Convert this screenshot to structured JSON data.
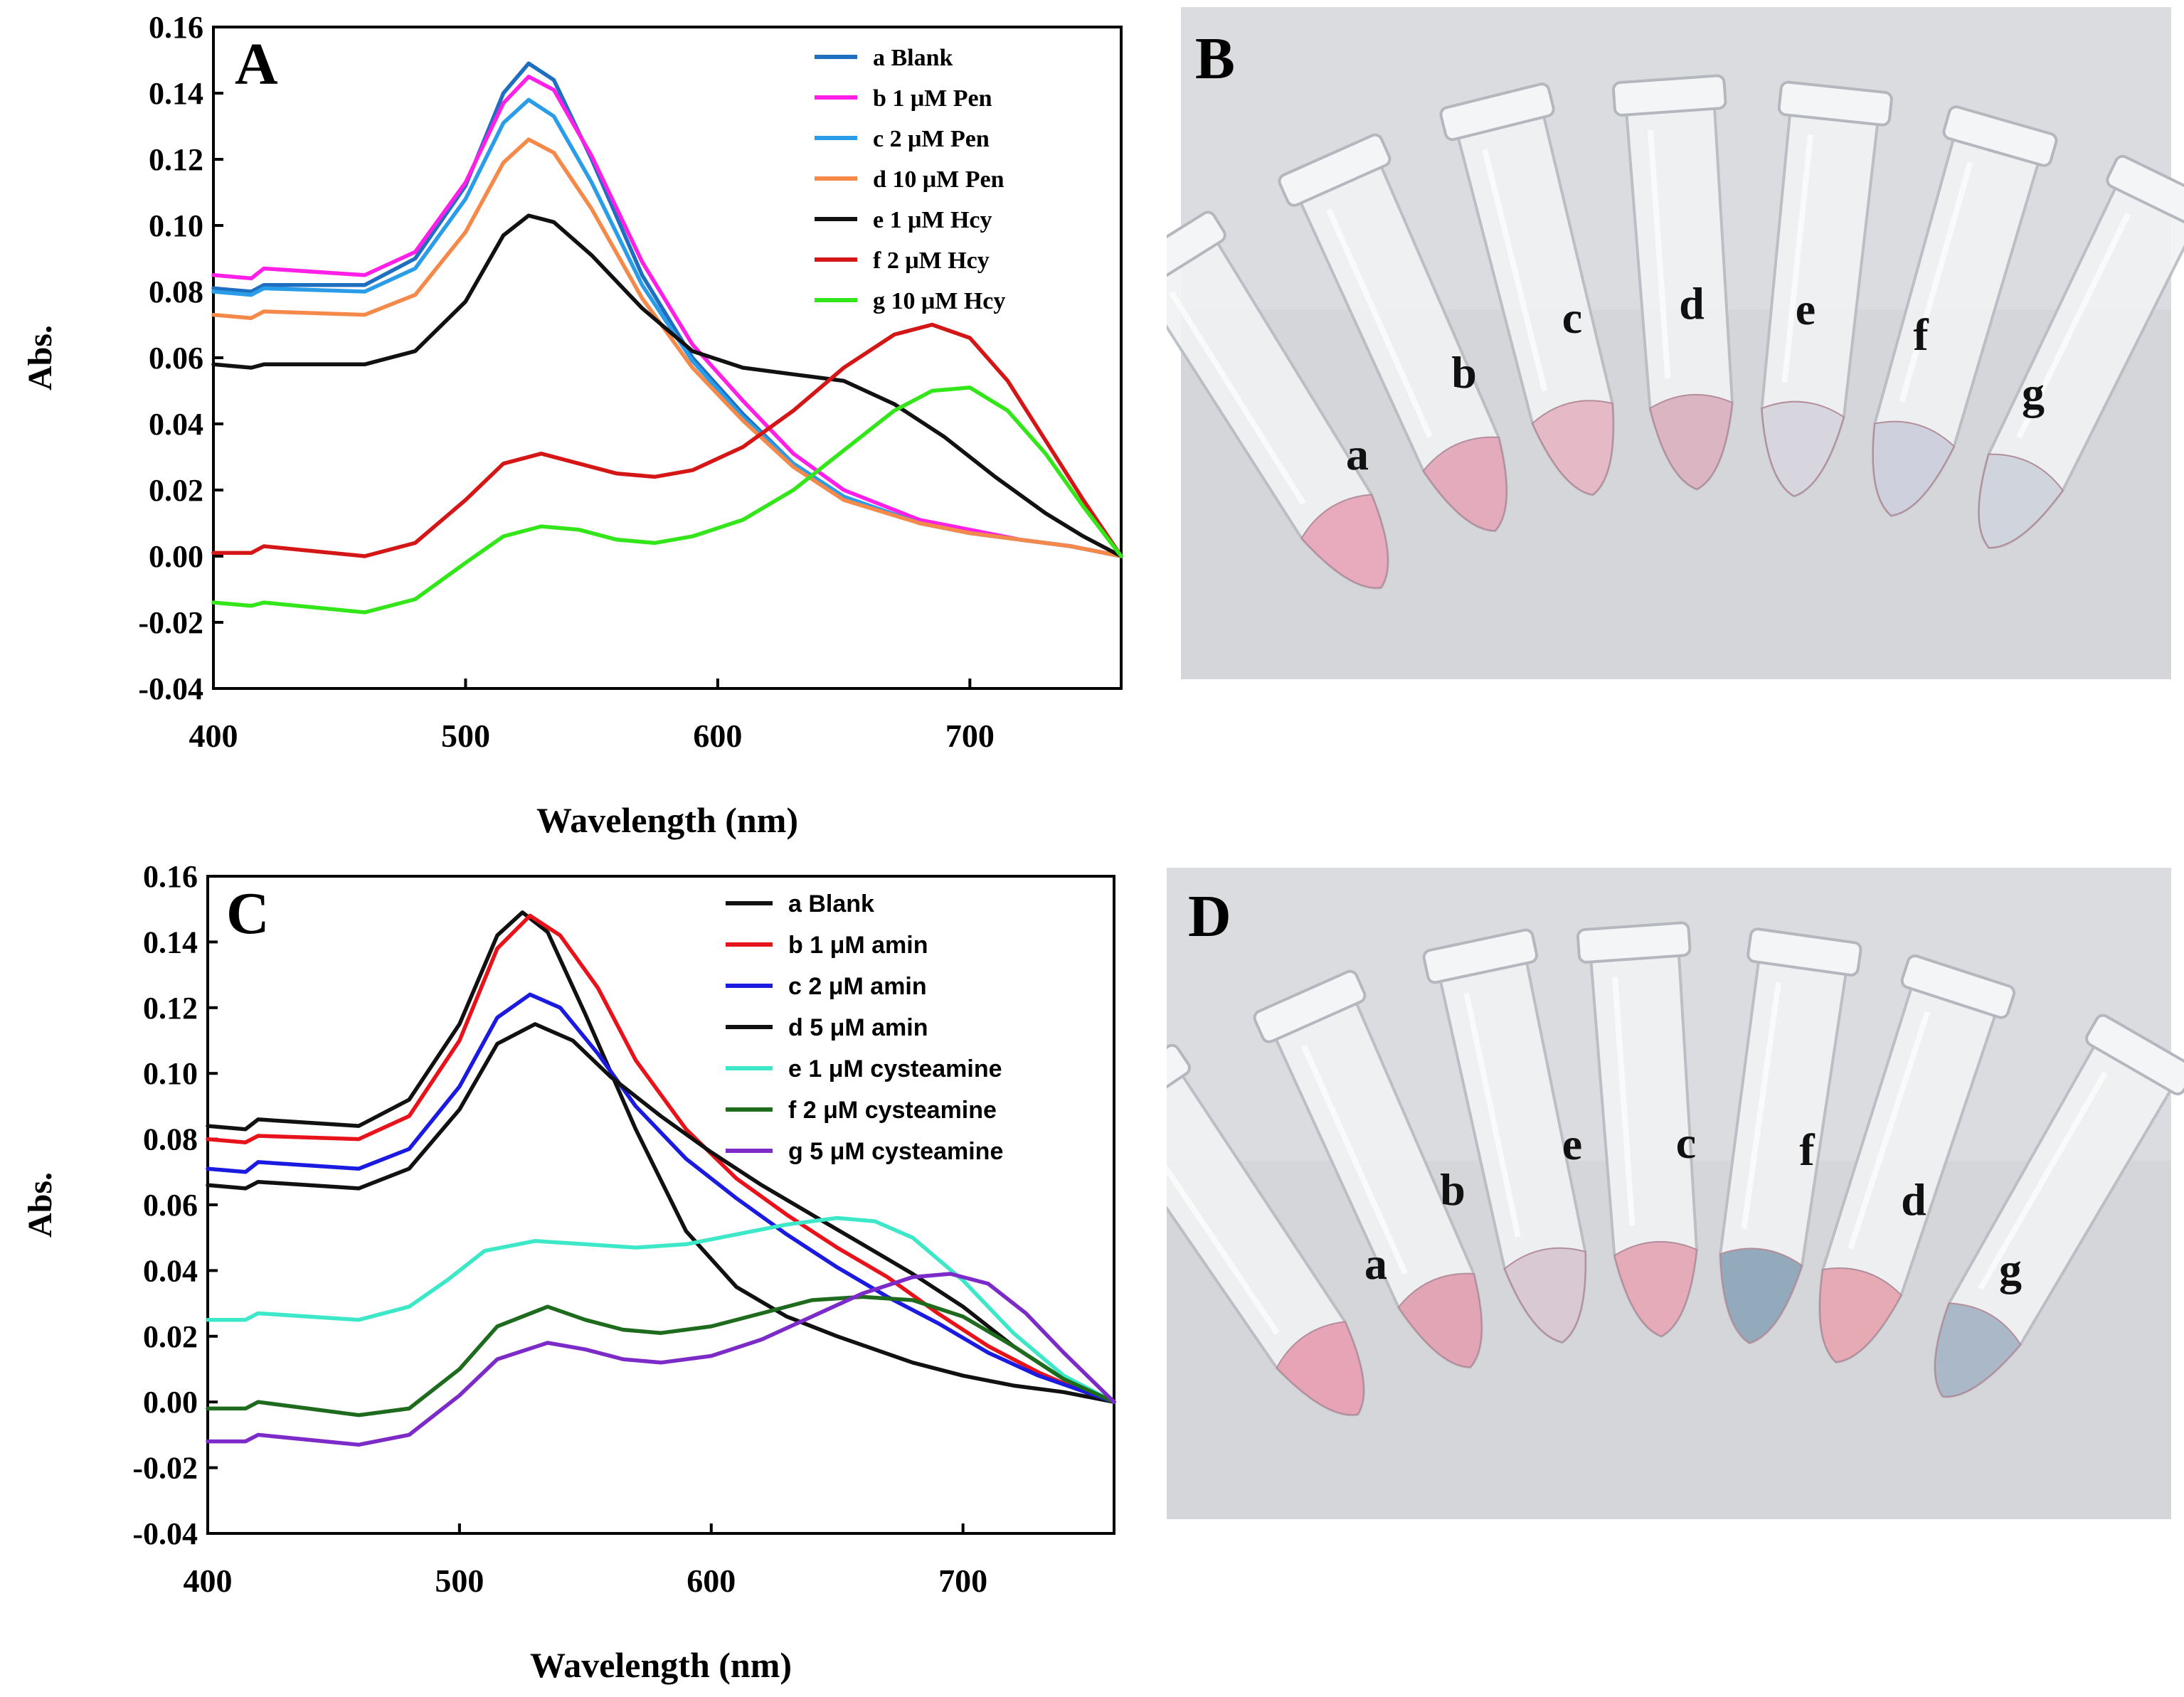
{
  "chart_data": [
    {
      "type": "line",
      "panel": "A",
      "title": "",
      "xlabel": "Wavelength (nm)",
      "ylabel": "Abs.",
      "xlim": [
        400,
        760
      ],
      "ylim": [
        -0.04,
        0.16
      ],
      "xticks": [
        400,
        500,
        600,
        700
      ],
      "xtick_labels": [
        "400",
        "500",
        "600",
        "700"
      ],
      "yticks": [
        -0.04,
        -0.02,
        0.0,
        0.02,
        0.04,
        0.06,
        0.08,
        0.1,
        0.12,
        0.14,
        0.16
      ],
      "ytick_labels": [
        "-0.04",
        "-0.02",
        "0.00",
        "0.02",
        "0.04",
        "0.06",
        "0.08",
        "0.10",
        "0.12",
        "0.14",
        "0.16"
      ],
      "grid": false,
      "legend_position": "top-right",
      "series": [
        {
          "name": "a Blank",
          "color": "#1f6fc0",
          "x": [
            400,
            415,
            420,
            460,
            480,
            500,
            515,
            525,
            535,
            550,
            570,
            590,
            610,
            630,
            650,
            680,
            700,
            720,
            740,
            760
          ],
          "y": [
            0.081,
            0.08,
            0.082,
            0.082,
            0.09,
            0.112,
            0.14,
            0.149,
            0.144,
            0.12,
            0.085,
            0.06,
            0.043,
            0.028,
            0.018,
            0.01,
            0.007,
            0.005,
            0.003,
            0.0
          ]
        },
        {
          "name": "b 1 μM Pen",
          "color": "#ff1fe6",
          "x": [
            400,
            415,
            420,
            460,
            480,
            500,
            515,
            525,
            535,
            550,
            570,
            590,
            610,
            630,
            650,
            680,
            700,
            720,
            740,
            760
          ],
          "y": [
            0.085,
            0.084,
            0.087,
            0.085,
            0.092,
            0.113,
            0.137,
            0.145,
            0.141,
            0.121,
            0.089,
            0.064,
            0.047,
            0.031,
            0.02,
            0.011,
            0.008,
            0.005,
            0.003,
            0.0
          ]
        },
        {
          "name": "c 2 μM Pen",
          "color": "#2b9de8",
          "x": [
            400,
            415,
            420,
            460,
            480,
            500,
            515,
            525,
            535,
            550,
            570,
            590,
            610,
            630,
            650,
            680,
            700,
            720,
            740,
            760
          ],
          "y": [
            0.08,
            0.079,
            0.081,
            0.08,
            0.087,
            0.108,
            0.131,
            0.138,
            0.133,
            0.113,
            0.082,
            0.059,
            0.042,
            0.028,
            0.018,
            0.01,
            0.007,
            0.005,
            0.003,
            0.0
          ]
        },
        {
          "name": "d 10 μM Pen",
          "color": "#f5894a",
          "x": [
            400,
            415,
            420,
            460,
            480,
            500,
            515,
            525,
            535,
            550,
            570,
            590,
            610,
            630,
            650,
            680,
            700,
            720,
            740,
            760
          ],
          "y": [
            0.073,
            0.072,
            0.074,
            0.073,
            0.079,
            0.098,
            0.119,
            0.126,
            0.122,
            0.105,
            0.078,
            0.057,
            0.041,
            0.027,
            0.017,
            0.01,
            0.007,
            0.005,
            0.003,
            0.0
          ]
        },
        {
          "name": "e 1 μM Hcy",
          "color": "#111111",
          "x": [
            400,
            415,
            420,
            460,
            480,
            500,
            515,
            525,
            535,
            550,
            570,
            590,
            610,
            630,
            650,
            670,
            690,
            710,
            730,
            745,
            760
          ],
          "y": [
            0.058,
            0.057,
            0.058,
            0.058,
            0.062,
            0.077,
            0.097,
            0.103,
            0.101,
            0.091,
            0.075,
            0.062,
            0.057,
            0.055,
            0.053,
            0.046,
            0.036,
            0.024,
            0.013,
            0.006,
            0.0
          ]
        },
        {
          "name": "f 2 μM Hcy",
          "color": "#d41616",
          "x": [
            400,
            415,
            420,
            460,
            480,
            500,
            515,
            530,
            545,
            560,
            575,
            590,
            610,
            630,
            650,
            670,
            685,
            700,
            715,
            730,
            745,
            760
          ],
          "y": [
            0.001,
            0.001,
            0.003,
            0.0,
            0.004,
            0.017,
            0.028,
            0.031,
            0.028,
            0.025,
            0.024,
            0.026,
            0.033,
            0.044,
            0.057,
            0.067,
            0.07,
            0.066,
            0.053,
            0.035,
            0.017,
            0.0
          ]
        },
        {
          "name": "g 10 μM Hcy",
          "color": "#33e61a",
          "x": [
            400,
            415,
            420,
            460,
            480,
            500,
            515,
            530,
            545,
            560,
            575,
            590,
            610,
            630,
            650,
            670,
            685,
            700,
            715,
            730,
            745,
            760
          ],
          "y": [
            -0.014,
            -0.015,
            -0.014,
            -0.017,
            -0.013,
            -0.002,
            0.006,
            0.009,
            0.008,
            0.005,
            0.004,
            0.006,
            0.011,
            0.02,
            0.032,
            0.044,
            0.05,
            0.051,
            0.044,
            0.031,
            0.015,
            0.0
          ]
        }
      ]
    },
    {
      "type": "line",
      "panel": "C",
      "title": "",
      "xlabel": "Wavelength (nm)",
      "ylabel": "Abs.",
      "xlim": [
        400,
        760
      ],
      "ylim": [
        -0.04,
        0.16
      ],
      "xticks": [
        400,
        500,
        600,
        700
      ],
      "xtick_labels": [
        "400",
        "500",
        "600",
        "700"
      ],
      "yticks": [
        -0.04,
        -0.02,
        0.0,
        0.02,
        0.04,
        0.06,
        0.08,
        0.1,
        0.12,
        0.14,
        0.16
      ],
      "ytick_labels": [
        "-0.04",
        "-0.02",
        "0.00",
        "0.02",
        "0.04",
        "0.06",
        "0.08",
        "0.10",
        "0.12",
        "0.14",
        "0.16"
      ],
      "grid": false,
      "legend_position": "top-right",
      "series": [
        {
          "name": "a Blank",
          "color": "#111111",
          "x": [
            400,
            415,
            420,
            460,
            480,
            500,
            515,
            525,
            535,
            550,
            570,
            590,
            610,
            630,
            650,
            680,
            700,
            720,
            740,
            760
          ],
          "y": [
            0.084,
            0.083,
            0.086,
            0.084,
            0.092,
            0.115,
            0.142,
            0.149,
            0.143,
            0.118,
            0.083,
            0.052,
            0.035,
            0.026,
            0.02,
            0.012,
            0.008,
            0.005,
            0.003,
            0.0
          ]
        },
        {
          "name": "b 1 μM amin",
          "color": "#e8121a",
          "x": [
            400,
            415,
            420,
            460,
            480,
            500,
            515,
            528,
            540,
            555,
            570,
            590,
            610,
            630,
            650,
            670,
            690,
            710,
            730,
            745,
            760
          ],
          "y": [
            0.08,
            0.079,
            0.081,
            0.08,
            0.087,
            0.11,
            0.138,
            0.148,
            0.142,
            0.126,
            0.104,
            0.083,
            0.068,
            0.057,
            0.047,
            0.038,
            0.027,
            0.017,
            0.009,
            0.004,
            0.0
          ]
        },
        {
          "name": "c 2 μM amin",
          "color": "#1a1ae0",
          "x": [
            400,
            415,
            420,
            460,
            480,
            500,
            515,
            528,
            540,
            555,
            570,
            590,
            610,
            630,
            650,
            670,
            690,
            710,
            730,
            745,
            760
          ],
          "y": [
            0.071,
            0.07,
            0.073,
            0.071,
            0.077,
            0.096,
            0.117,
            0.124,
            0.12,
            0.106,
            0.09,
            0.074,
            0.062,
            0.051,
            0.041,
            0.032,
            0.024,
            0.015,
            0.008,
            0.004,
            0.0
          ]
        },
        {
          "name": "d 5 μM amin",
          "color": "#111111",
          "x": [
            400,
            415,
            420,
            460,
            480,
            500,
            515,
            530,
            545,
            560,
            580,
            600,
            620,
            640,
            660,
            680,
            700,
            720,
            740,
            760
          ],
          "y": [
            0.066,
            0.065,
            0.067,
            0.065,
            0.071,
            0.089,
            0.109,
            0.115,
            0.11,
            0.099,
            0.087,
            0.076,
            0.066,
            0.057,
            0.048,
            0.039,
            0.029,
            0.017,
            0.007,
            0.0
          ]
        },
        {
          "name": "e 1 μM  cysteamine",
          "color": "#3de8c8",
          "x": [
            400,
            415,
            420,
            460,
            480,
            495,
            510,
            530,
            550,
            570,
            590,
            610,
            630,
            650,
            665,
            680,
            700,
            720,
            740,
            760
          ],
          "y": [
            0.025,
            0.025,
            0.027,
            0.025,
            0.029,
            0.037,
            0.046,
            0.049,
            0.048,
            0.047,
            0.048,
            0.051,
            0.054,
            0.056,
            0.055,
            0.05,
            0.037,
            0.021,
            0.008,
            0.0
          ]
        },
        {
          "name": "f 2 μM cysteamine",
          "color": "#1e6b1e",
          "x": [
            400,
            415,
            420,
            460,
            480,
            500,
            515,
            535,
            550,
            565,
            580,
            600,
            620,
            640,
            660,
            680,
            700,
            720,
            740,
            760
          ],
          "y": [
            -0.002,
            -0.002,
            0.0,
            -0.004,
            -0.002,
            0.01,
            0.023,
            0.029,
            0.025,
            0.022,
            0.021,
            0.023,
            0.027,
            0.031,
            0.032,
            0.031,
            0.026,
            0.017,
            0.007,
            0.0
          ]
        },
        {
          "name": "g 5 μM cysteamine",
          "color": "#7d2bc8",
          "x": [
            400,
            415,
            420,
            460,
            480,
            500,
            515,
            535,
            550,
            565,
            580,
            600,
            620,
            640,
            660,
            680,
            695,
            710,
            725,
            740,
            760
          ],
          "y": [
            -0.012,
            -0.012,
            -0.01,
            -0.013,
            -0.01,
            0.002,
            0.013,
            0.018,
            0.016,
            0.013,
            0.012,
            0.014,
            0.019,
            0.026,
            0.033,
            0.038,
            0.039,
            0.036,
            0.027,
            0.015,
            0.0
          ]
        }
      ]
    }
  ],
  "panels": {
    "A": {
      "label": "A"
    },
    "B": {
      "label": "B",
      "tube_labels": [
        "a",
        "b",
        "c",
        "d",
        "e",
        "f",
        "g"
      ],
      "tube_colors": [
        "#e8a7bb",
        "#e3a8ba",
        "#e6b7c4",
        "#dcb2c1",
        "#d6d5df",
        "#cdd0dc",
        "#cfd3dc"
      ]
    },
    "C": {
      "label": "C"
    },
    "D": {
      "label": "D",
      "tube_labels": [
        "a",
        "b",
        "e",
        "c",
        "f",
        "d",
        "g"
      ],
      "tube_colors": [
        "#e6a0b3",
        "#e2a2b2",
        "#d8c7d2",
        "#e5a8b5",
        "#8fa7bb",
        "#e6a7b2",
        "#a8b6c6"
      ]
    }
  }
}
